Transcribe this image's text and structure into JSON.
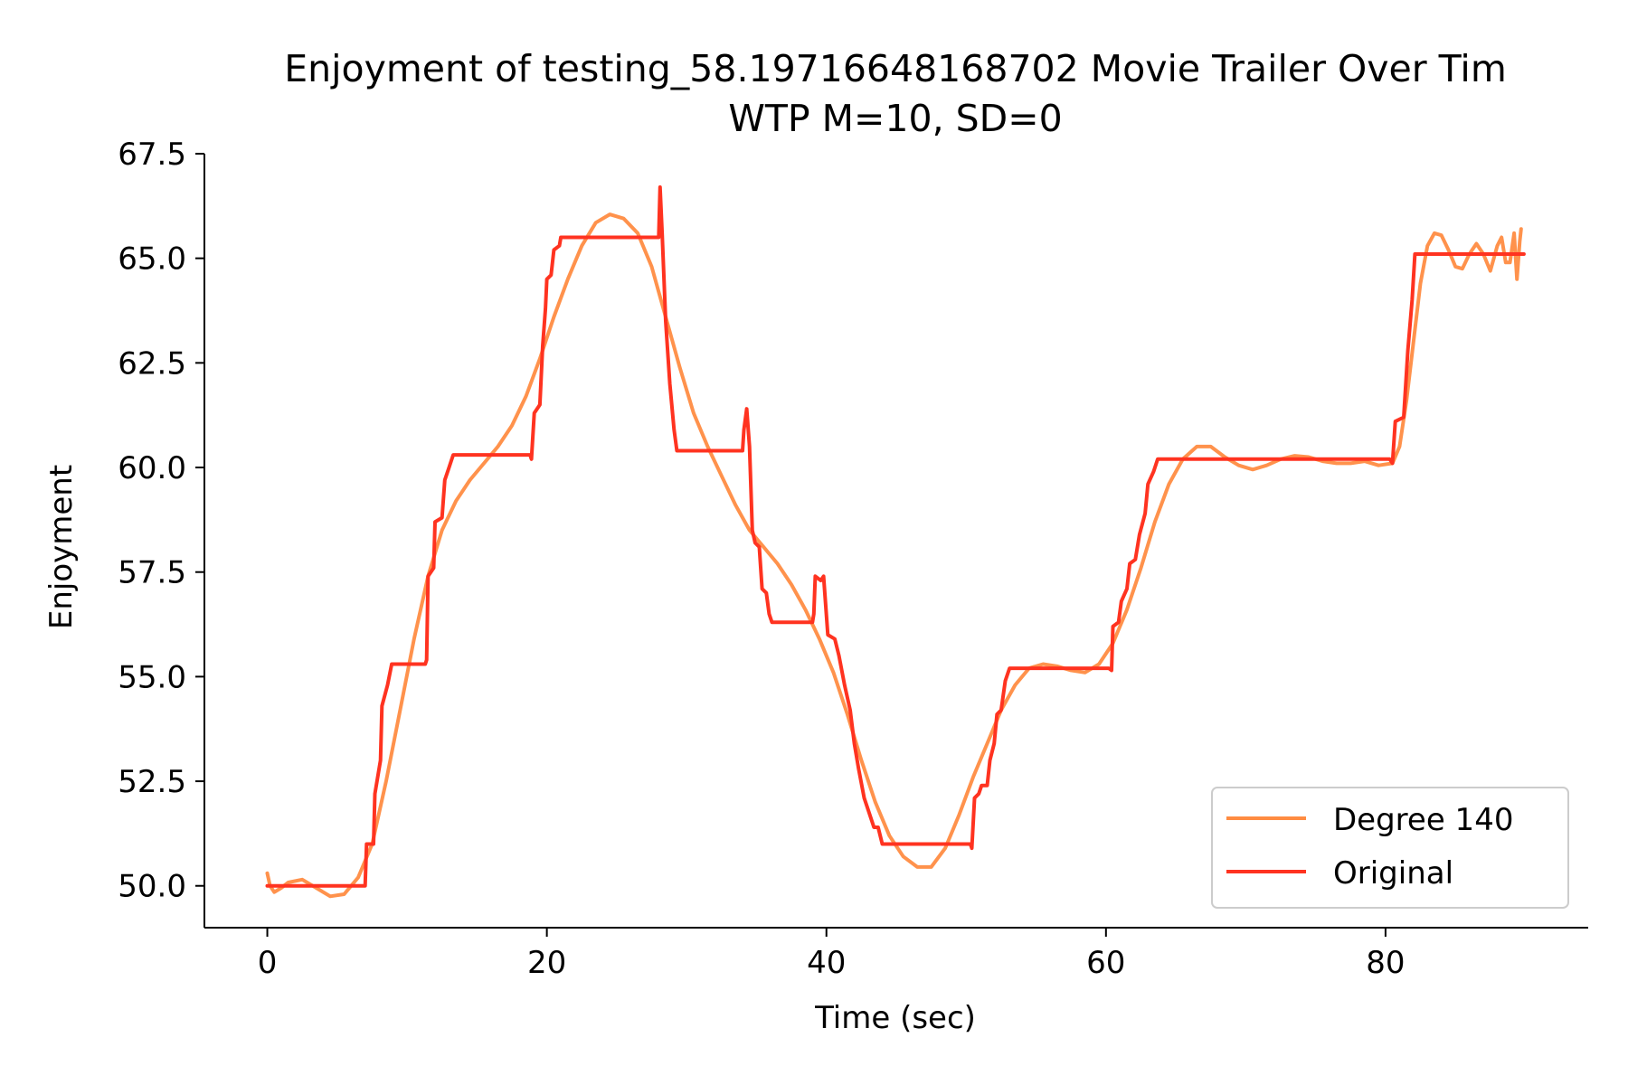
{
  "chart_data": {
    "type": "line",
    "title": "Enjoyment of testing_58.19716648168702 Movie Trailer Over Tim",
    "subtitle": "WTP M=10, SD=0",
    "xlabel": "Time (sec)",
    "ylabel": "Enjoyment",
    "xlim": [
      -4.5,
      94.5
    ],
    "ylim": [
      49.0,
      67.5
    ],
    "x_ticks": [
      0,
      20,
      40,
      60,
      80
    ],
    "x_tick_labels": [
      "0",
      "20",
      "40",
      "60",
      "80"
    ],
    "y_ticks": [
      50.0,
      52.5,
      55.0,
      57.5,
      60.0,
      62.5,
      65.0,
      67.5
    ],
    "y_tick_labels": [
      "50.0",
      "52.5",
      "55.0",
      "57.5",
      "60.0",
      "62.5",
      "65.0",
      "67.5"
    ],
    "grid": false,
    "legend_position": "lower-right",
    "series": [
      {
        "name": "Degree 140",
        "color": "#ff8c42",
        "points": [
          [
            0.0,
            50.3
          ],
          [
            0.2,
            50.0
          ],
          [
            0.5,
            49.85
          ],
          [
            1.0,
            49.95
          ],
          [
            1.5,
            50.08
          ],
          [
            2.5,
            50.15
          ],
          [
            3.5,
            49.95
          ],
          [
            4.5,
            49.75
          ],
          [
            5.5,
            49.8
          ],
          [
            6.5,
            50.2
          ],
          [
            7.5,
            51.0
          ],
          [
            8.5,
            52.5
          ],
          [
            9.5,
            54.2
          ],
          [
            10.5,
            55.9
          ],
          [
            11.5,
            57.4
          ],
          [
            12.5,
            58.5
          ],
          [
            13.5,
            59.2
          ],
          [
            14.5,
            59.7
          ],
          [
            15.5,
            60.1
          ],
          [
            16.5,
            60.5
          ],
          [
            17.5,
            61.0
          ],
          [
            18.5,
            61.7
          ],
          [
            19.5,
            62.6
          ],
          [
            20.5,
            63.6
          ],
          [
            21.5,
            64.5
          ],
          [
            22.5,
            65.3
          ],
          [
            23.5,
            65.85
          ],
          [
            24.5,
            66.05
          ],
          [
            25.5,
            65.95
          ],
          [
            26.5,
            65.6
          ],
          [
            27.5,
            64.8
          ],
          [
            28.5,
            63.6
          ],
          [
            29.5,
            62.4
          ],
          [
            30.5,
            61.3
          ],
          [
            31.5,
            60.5
          ],
          [
            32.5,
            59.8
          ],
          [
            33.5,
            59.1
          ],
          [
            34.5,
            58.5
          ],
          [
            35.5,
            58.1
          ],
          [
            36.5,
            57.7
          ],
          [
            37.5,
            57.2
          ],
          [
            38.5,
            56.6
          ],
          [
            39.5,
            55.9
          ],
          [
            40.5,
            55.1
          ],
          [
            41.5,
            54.1
          ],
          [
            42.5,
            53.0
          ],
          [
            43.5,
            52.0
          ],
          [
            44.5,
            51.2
          ],
          [
            45.5,
            50.7
          ],
          [
            46.5,
            50.45
          ],
          [
            47.5,
            50.45
          ],
          [
            48.5,
            50.9
          ],
          [
            49.5,
            51.7
          ],
          [
            50.5,
            52.6
          ],
          [
            51.5,
            53.4
          ],
          [
            52.5,
            54.2
          ],
          [
            53.5,
            54.8
          ],
          [
            54.5,
            55.2
          ],
          [
            55.5,
            55.3
          ],
          [
            56.5,
            55.25
          ],
          [
            57.5,
            55.15
          ],
          [
            58.5,
            55.1
          ],
          [
            59.5,
            55.3
          ],
          [
            60.5,
            55.8
          ],
          [
            61.5,
            56.6
          ],
          [
            62.5,
            57.6
          ],
          [
            63.5,
            58.7
          ],
          [
            64.5,
            59.6
          ],
          [
            65.5,
            60.2
          ],
          [
            66.5,
            60.5
          ],
          [
            67.5,
            60.5
          ],
          [
            68.5,
            60.25
          ],
          [
            69.5,
            60.05
          ],
          [
            70.5,
            59.95
          ],
          [
            71.5,
            60.05
          ],
          [
            72.5,
            60.2
          ],
          [
            73.5,
            60.28
          ],
          [
            74.5,
            60.25
          ],
          [
            75.5,
            60.15
          ],
          [
            76.5,
            60.1
          ],
          [
            77.5,
            60.1
          ],
          [
            78.5,
            60.15
          ],
          [
            79.5,
            60.05
          ],
          [
            80.5,
            60.1
          ],
          [
            81.0,
            60.5
          ],
          [
            81.5,
            61.6
          ],
          [
            82.0,
            63.0
          ],
          [
            82.5,
            64.4
          ],
          [
            83.0,
            65.3
          ],
          [
            83.5,
            65.6
          ],
          [
            84.0,
            65.55
          ],
          [
            84.5,
            65.2
          ],
          [
            85.0,
            64.8
          ],
          [
            85.5,
            64.75
          ],
          [
            86.0,
            65.1
          ],
          [
            86.5,
            65.35
          ],
          [
            87.0,
            65.1
          ],
          [
            87.5,
            64.7
          ],
          [
            88.0,
            65.3
          ],
          [
            88.3,
            65.5
          ],
          [
            88.6,
            64.9
          ],
          [
            88.9,
            64.9
          ],
          [
            89.2,
            65.6
          ],
          [
            89.4,
            64.5
          ],
          [
            89.6,
            65.4
          ],
          [
            89.7,
            65.7
          ]
        ]
      },
      {
        "name": "Original",
        "color": "#ff3320",
        "points": [
          [
            0.0,
            50.0
          ],
          [
            7.0,
            50.0
          ],
          [
            7.1,
            51.0
          ],
          [
            7.6,
            51.0
          ],
          [
            7.7,
            52.2
          ],
          [
            8.1,
            53.0
          ],
          [
            8.2,
            54.3
          ],
          [
            8.6,
            54.8
          ],
          [
            8.9,
            55.3
          ],
          [
            11.3,
            55.3
          ],
          [
            11.4,
            55.4
          ],
          [
            11.5,
            57.4
          ],
          [
            11.9,
            57.6
          ],
          [
            12.0,
            58.7
          ],
          [
            12.5,
            58.8
          ],
          [
            12.7,
            59.7
          ],
          [
            13.0,
            60.0
          ],
          [
            13.3,
            60.3
          ],
          [
            18.8,
            60.3
          ],
          [
            18.9,
            60.2
          ],
          [
            19.1,
            61.3
          ],
          [
            19.5,
            61.5
          ],
          [
            19.7,
            62.9
          ],
          [
            19.9,
            63.8
          ],
          [
            20.0,
            64.5
          ],
          [
            20.3,
            64.6
          ],
          [
            20.5,
            65.2
          ],
          [
            20.9,
            65.3
          ],
          [
            21.0,
            65.5
          ],
          [
            28.0,
            65.5
          ],
          [
            28.1,
            66.7
          ],
          [
            28.25,
            65.6
          ],
          [
            28.5,
            63.5
          ],
          [
            28.8,
            62.0
          ],
          [
            29.1,
            60.9
          ],
          [
            29.3,
            60.4
          ],
          [
            34.0,
            60.4
          ],
          [
            34.1,
            60.9
          ],
          [
            34.3,
            61.4
          ],
          [
            34.5,
            60.5
          ],
          [
            34.7,
            58.5
          ],
          [
            34.9,
            58.2
          ],
          [
            35.2,
            58.1
          ],
          [
            35.4,
            57.1
          ],
          [
            35.7,
            57.0
          ],
          [
            35.9,
            56.5
          ],
          [
            36.1,
            56.3
          ],
          [
            39.0,
            56.3
          ],
          [
            39.1,
            56.5
          ],
          [
            39.2,
            57.4
          ],
          [
            39.6,
            57.3
          ],
          [
            39.8,
            57.4
          ],
          [
            40.1,
            56.0
          ],
          [
            40.6,
            55.9
          ],
          [
            40.9,
            55.5
          ],
          [
            41.3,
            54.8
          ],
          [
            41.7,
            54.2
          ],
          [
            42.0,
            53.4
          ],
          [
            42.3,
            52.8
          ],
          [
            42.7,
            52.1
          ],
          [
            43.0,
            51.8
          ],
          [
            43.4,
            51.4
          ],
          [
            43.7,
            51.4
          ],
          [
            44.0,
            51.0
          ],
          [
            50.3,
            51.0
          ],
          [
            50.4,
            50.9
          ],
          [
            50.6,
            52.1
          ],
          [
            50.9,
            52.2
          ],
          [
            51.1,
            52.4
          ],
          [
            51.5,
            52.4
          ],
          [
            51.7,
            53.0
          ],
          [
            52.0,
            53.4
          ],
          [
            52.2,
            54.1
          ],
          [
            52.5,
            54.2
          ],
          [
            52.8,
            54.9
          ],
          [
            53.1,
            55.2
          ],
          [
            60.2,
            55.2
          ],
          [
            60.4,
            55.15
          ],
          [
            60.5,
            56.2
          ],
          [
            60.9,
            56.3
          ],
          [
            61.1,
            56.8
          ],
          [
            61.5,
            57.1
          ],
          [
            61.7,
            57.7
          ],
          [
            62.1,
            57.8
          ],
          [
            62.4,
            58.4
          ],
          [
            62.8,
            58.9
          ],
          [
            63.0,
            59.6
          ],
          [
            63.4,
            59.9
          ],
          [
            63.7,
            60.2
          ],
          [
            80.3,
            60.2
          ],
          [
            80.5,
            60.1
          ],
          [
            80.7,
            61.1
          ],
          [
            81.3,
            61.2
          ],
          [
            81.6,
            62.8
          ],
          [
            81.9,
            64.0
          ],
          [
            82.1,
            65.1
          ],
          [
            89.9,
            65.1
          ]
        ]
      }
    ]
  }
}
